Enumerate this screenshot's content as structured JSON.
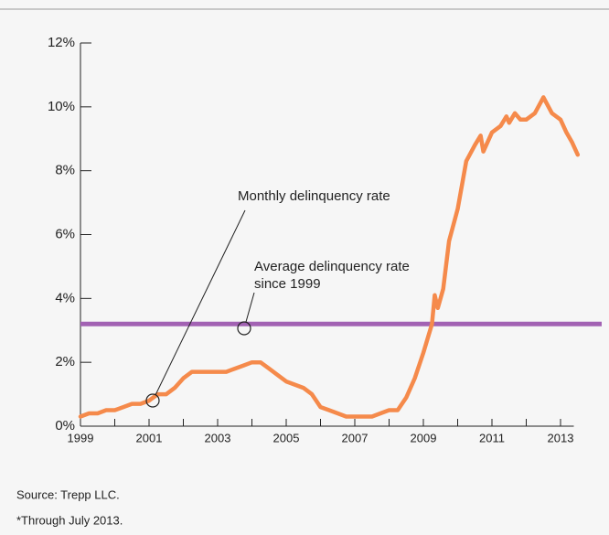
{
  "chart_data": {
    "type": "line",
    "xlim": [
      1999,
      2013.6
    ],
    "ylim": [
      0,
      12
    ],
    "xticks": [
      1999,
      2001,
      2003,
      2005,
      2007,
      2009,
      2011,
      2013
    ],
    "x_minor_ticks": [
      2000,
      2002,
      2004,
      2006,
      2008,
      2010,
      2012
    ],
    "yticks": [
      {
        "value": 0,
        "label": "0%"
      },
      {
        "value": 2,
        "label": "2%"
      },
      {
        "value": 4,
        "label": "4%"
      },
      {
        "value": 6,
        "label": "6%"
      },
      {
        "value": 8,
        "label": "8%"
      },
      {
        "value": 10,
        "label": "10%"
      },
      {
        "value": 12,
        "label": "12%"
      }
    ],
    "series": [
      {
        "name": "Monthly delinquency rate",
        "color": "#f58a4b",
        "x": [
          1999.0,
          1999.25,
          1999.5,
          1999.75,
          2000.0,
          2000.25,
          2000.5,
          2000.75,
          2001.0,
          2001.25,
          2001.5,
          2001.75,
          2002.0,
          2002.25,
          2002.5,
          2002.75,
          2003.0,
          2003.25,
          2003.5,
          2003.75,
          2004.0,
          2004.25,
          2004.5,
          2004.75,
          2005.0,
          2005.25,
          2005.5,
          2005.75,
          2006.0,
          2006.25,
          2006.5,
          2006.75,
          2007.0,
          2007.25,
          2007.5,
          2007.75,
          2008.0,
          2008.25,
          2008.5,
          2008.75,
          2009.0,
          2009.25,
          2009.33,
          2009.42,
          2009.58,
          2009.75,
          2010.0,
          2010.25,
          2010.5,
          2010.67,
          2010.75,
          2011.0,
          2011.25,
          2011.42,
          2011.5,
          2011.67,
          2011.83,
          2012.0,
          2012.25,
          2012.5,
          2012.75,
          2013.0,
          2013.17,
          2013.33,
          2013.5
        ],
        "values": [
          0.3,
          0.4,
          0.4,
          0.5,
          0.5,
          0.6,
          0.7,
          0.7,
          0.8,
          1.0,
          1.0,
          1.2,
          1.5,
          1.7,
          1.7,
          1.7,
          1.7,
          1.7,
          1.8,
          1.9,
          2.0,
          2.0,
          1.8,
          1.6,
          1.4,
          1.3,
          1.2,
          1.0,
          0.6,
          0.5,
          0.4,
          0.3,
          0.3,
          0.3,
          0.3,
          0.4,
          0.5,
          0.5,
          0.9,
          1.5,
          2.3,
          3.2,
          4.1,
          3.7,
          4.3,
          5.8,
          6.8,
          8.3,
          8.8,
          9.1,
          8.6,
          9.2,
          9.4,
          9.7,
          9.5,
          9.8,
          9.6,
          9.6,
          9.8,
          10.3,
          9.8,
          9.6,
          9.2,
          8.9,
          8.5
        ]
      }
    ],
    "average": {
      "value": 3.2,
      "color": "#a262b3",
      "label_lines": [
        "Average delinquency rate",
        "since 1999"
      ]
    },
    "notes": [
      "Source: Trepp LLC.",
      "*Through July 2013."
    ]
  }
}
